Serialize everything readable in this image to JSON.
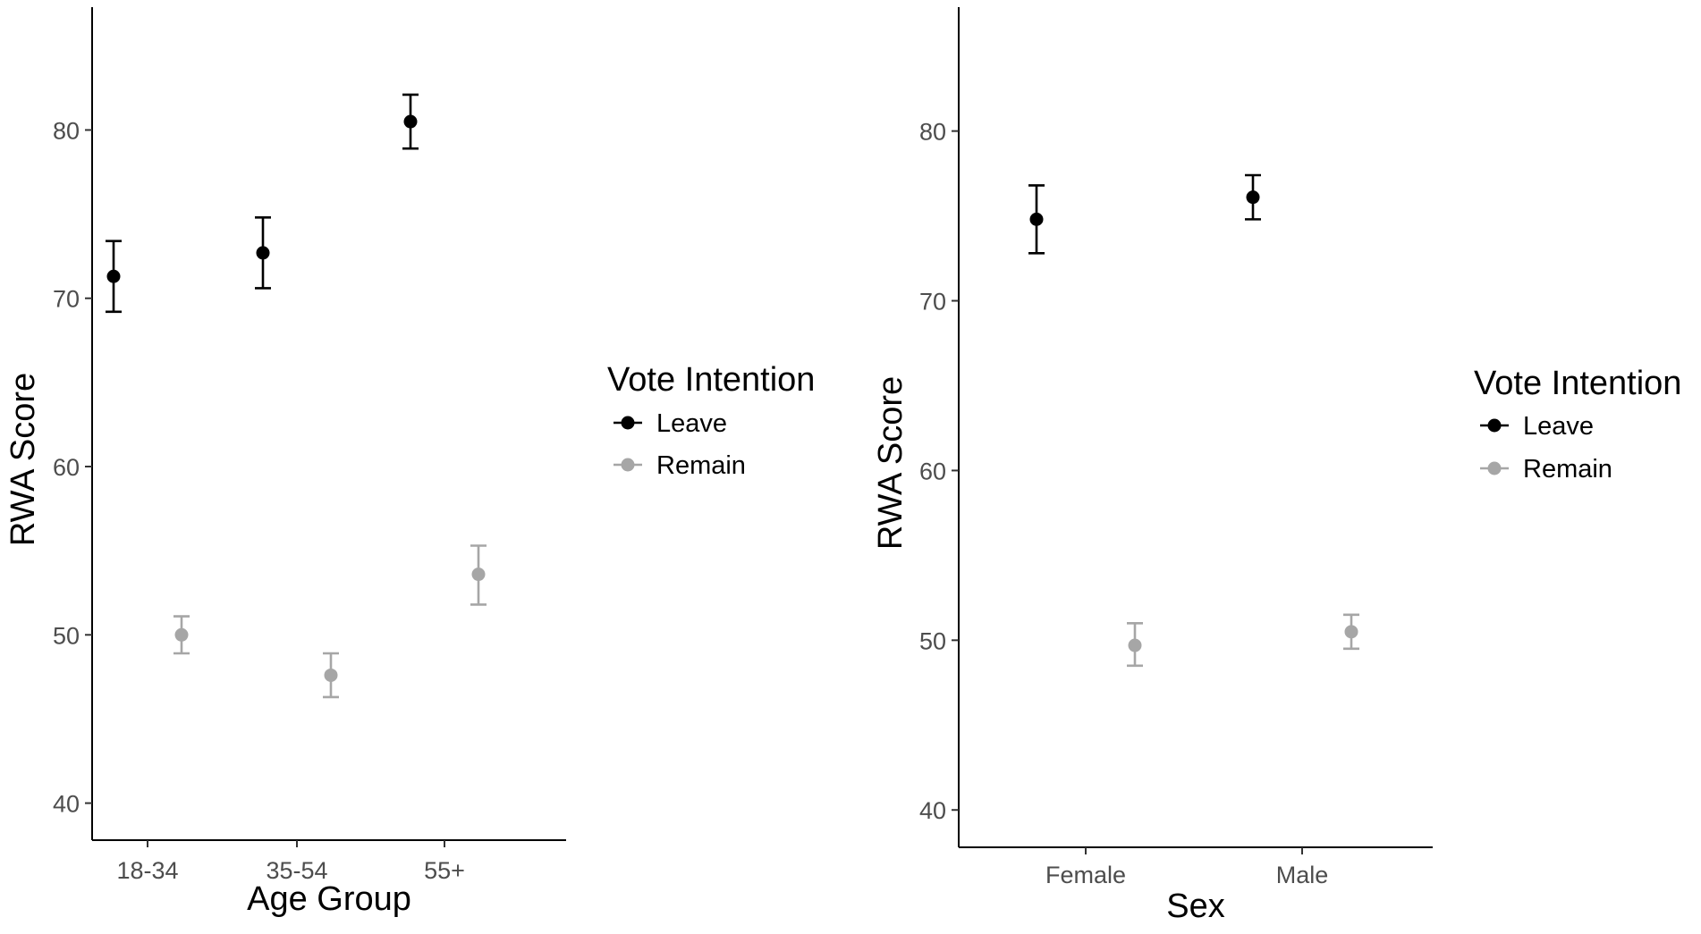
{
  "chart_data": [
    {
      "type": "scatter",
      "xlabel": "Age Group",
      "ylabel": "RWA Score",
      "categories": [
        "18-34",
        "35-54",
        "55+"
      ],
      "ylim": [
        37.8,
        87.3
      ],
      "yticks": [
        40,
        50,
        60,
        70,
        80
      ],
      "grid": false,
      "legend": {
        "title": "Vote Intention",
        "position": "right"
      },
      "series": [
        {
          "name": "Leave",
          "color": "#000000",
          "values": [
            71.3,
            72.7,
            80.5
          ],
          "lower": [
            69.2,
            70.6,
            78.9
          ],
          "upper": [
            73.4,
            74.8,
            82.1
          ]
        },
        {
          "name": "Remain",
          "color": "#a6a6a6",
          "values": [
            50.0,
            47.6,
            53.6
          ],
          "lower": [
            48.9,
            46.3,
            51.8
          ],
          "upper": [
            51.1,
            48.9,
            55.3
          ]
        }
      ]
    },
    {
      "type": "scatter",
      "xlabel": "Sex",
      "ylabel": "RWA Score",
      "categories": [
        "Female",
        "Male"
      ],
      "ylim": [
        37.8,
        87.3
      ],
      "yticks": [
        40,
        50,
        60,
        70,
        80
      ],
      "grid": false,
      "legend": {
        "title": "Vote Intention",
        "position": "right"
      },
      "series": [
        {
          "name": "Leave",
          "color": "#000000",
          "values": [
            74.8,
            76.1
          ],
          "lower": [
            72.8,
            74.8
          ],
          "upper": [
            76.8,
            77.4
          ]
        },
        {
          "name": "Remain",
          "color": "#a6a6a6",
          "values": [
            49.7,
            50.5
          ],
          "lower": [
            48.5,
            49.5
          ],
          "upper": [
            51.0,
            51.5
          ]
        }
      ]
    }
  ]
}
